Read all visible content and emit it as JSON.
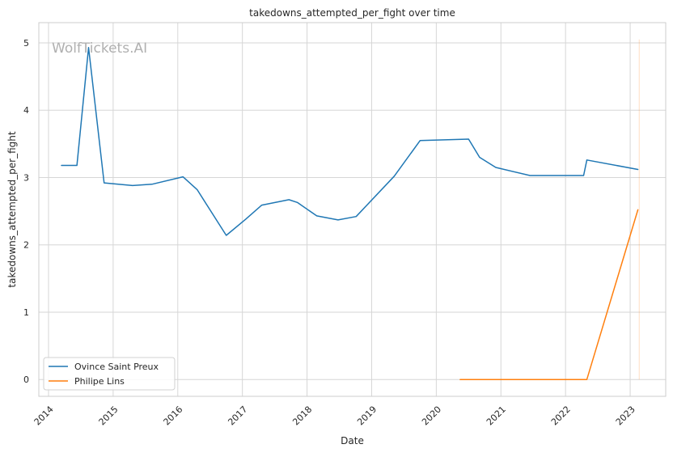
{
  "chart_data": {
    "type": "line",
    "title": "takedowns_attempted_per_fight over time",
    "xlabel": "Date",
    "ylabel": "takedowns_attempted_per_fight",
    "watermark": "WolfTickets.AI",
    "xlim": [
      2013.85,
      2023.55
    ],
    "ylim": [
      -0.25,
      5.3
    ],
    "x_ticks": [
      2014,
      2015,
      2016,
      2017,
      2018,
      2019,
      2020,
      2021,
      2022,
      2023
    ],
    "y_ticks": [
      0,
      1,
      2,
      3,
      4,
      5
    ],
    "grid": true,
    "legend_position": "lower-left",
    "colors": {
      "grid": "#d6d6d6",
      "axes": "#cccccc"
    },
    "series": [
      {
        "name": "Ovince Saint Preux",
        "color": "#1f77b4",
        "x": [
          2014.2,
          2014.44,
          2014.62,
          2014.86,
          2015.3,
          2015.6,
          2016.08,
          2016.3,
          2016.75,
          2017.05,
          2017.3,
          2017.72,
          2017.85,
          2018.15,
          2018.48,
          2018.76,
          2019.35,
          2019.75,
          2020.5,
          2020.67,
          2020.92,
          2021.45,
          2022.28,
          2022.33,
          2023.12
        ],
        "y": [
          3.18,
          3.18,
          4.93,
          2.92,
          2.88,
          2.9,
          3.01,
          2.82,
          2.14,
          2.38,
          2.59,
          2.67,
          2.63,
          2.43,
          2.37,
          2.42,
          3.02,
          3.55,
          3.57,
          3.3,
          3.15,
          3.03,
          3.03,
          3.26,
          3.12
        ]
      },
      {
        "name": "Philipe Lins",
        "color": "#ff7f0e",
        "x": [
          2020.37,
          2022.33,
          2023.12
        ],
        "y": [
          0.0,
          0.0,
          2.52
        ]
      }
    ],
    "annotations": [
      {
        "type": "vertical-line",
        "x": 2023.14,
        "y_range": [
          0.0,
          5.05
        ],
        "color": "#ff7f0e",
        "opacity": 0.25
      }
    ]
  }
}
